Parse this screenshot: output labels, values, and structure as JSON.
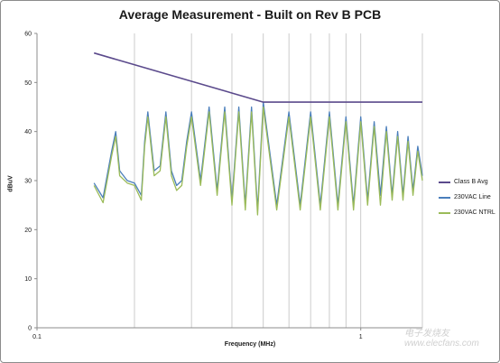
{
  "chart_data": {
    "type": "line",
    "title": "Average Measurement - Built on Rev B PCB",
    "xlabel": "Frequency (MHz)",
    "ylabel": "dBuV",
    "x_scale": "log",
    "xlim": [
      0.1,
      1.55
    ],
    "ylim": [
      0,
      60
    ],
    "x_ticks": [
      0.1,
      1
    ],
    "x_tick_labels": [
      "0.1",
      "1"
    ],
    "y_ticks": [
      0,
      10,
      20,
      30,
      40,
      50,
      60
    ],
    "y_tick_labels": [
      "0",
      "10",
      "20",
      "30",
      "40",
      "50",
      "60"
    ],
    "grid": "vertical",
    "legend": "right",
    "series": [
      {
        "name": "Class B Avg",
        "color": "#5b4a8c",
        "x": [
          0.15,
          0.5,
          1.55
        ],
        "y": [
          56,
          46,
          46
        ]
      },
      {
        "name": "230VAC Line",
        "color": "#4a7ebb",
        "x": [
          0.15,
          0.16,
          0.17,
          0.175,
          0.18,
          0.19,
          0.2,
          0.21,
          0.215,
          0.22,
          0.23,
          0.24,
          0.25,
          0.26,
          0.27,
          0.28,
          0.29,
          0.3,
          0.32,
          0.34,
          0.36,
          0.38,
          0.4,
          0.42,
          0.44,
          0.46,
          0.48,
          0.5,
          0.55,
          0.6,
          0.65,
          0.7,
          0.75,
          0.8,
          0.85,
          0.9,
          0.95,
          1.0,
          1.05,
          1.1,
          1.15,
          1.2,
          1.25,
          1.3,
          1.35,
          1.4,
          1.45,
          1.5,
          1.55
        ],
        "y": [
          29.5,
          26.5,
          36,
          40,
          32,
          30,
          29.5,
          27,
          38,
          44,
          32,
          33,
          44,
          32,
          29,
          30,
          38,
          44,
          30,
          45,
          28,
          45,
          26,
          45,
          25,
          45,
          24,
          46,
          25,
          44,
          25,
          44,
          25,
          44,
          25,
          43,
          25,
          43,
          26,
          42,
          27,
          41,
          27,
          40,
          27,
          39,
          28,
          37,
          31
        ]
      },
      {
        "name": "230VAC NTRL",
        "color": "#9bbb59",
        "x": [
          0.15,
          0.16,
          0.17,
          0.175,
          0.18,
          0.19,
          0.2,
          0.21,
          0.215,
          0.22,
          0.23,
          0.24,
          0.25,
          0.26,
          0.27,
          0.28,
          0.29,
          0.3,
          0.32,
          0.34,
          0.36,
          0.38,
          0.4,
          0.42,
          0.44,
          0.46,
          0.48,
          0.5,
          0.55,
          0.6,
          0.65,
          0.7,
          0.75,
          0.8,
          0.85,
          0.9,
          0.95,
          1.0,
          1.05,
          1.1,
          1.15,
          1.2,
          1.25,
          1.3,
          1.35,
          1.4,
          1.45,
          1.5,
          1.55
        ],
        "y": [
          29,
          25.5,
          35,
          39,
          31,
          29.5,
          29,
          26,
          37,
          43,
          31,
          32,
          43,
          31,
          28,
          29,
          37,
          43,
          29,
          44,
          27,
          44,
          25,
          44,
          24,
          44,
          23,
          45,
          24,
          43,
          24,
          43,
          24,
          43,
          24,
          42,
          24,
          42,
          25,
          41,
          25,
          40,
          26,
          39,
          26,
          38,
          27,
          36,
          30
        ]
      }
    ]
  },
  "watermark": "电子发烧友 www.elecfans.com"
}
